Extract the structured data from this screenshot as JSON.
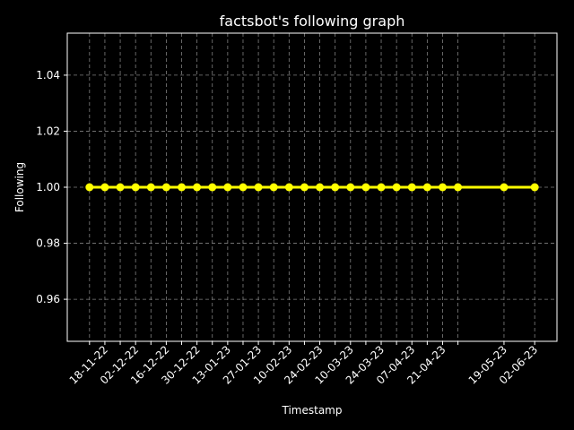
{
  "chart_data": {
    "type": "line",
    "title": "factsbot's following graph",
    "xlabel": "Timestamp",
    "ylabel": "Following",
    "x_tick_labels": [
      "18-11-22",
      "02-12-22",
      "16-12-22",
      "30-12-22",
      "13-01-23",
      "27-01-23",
      "10-02-23",
      "24-02-23",
      "10-03-23",
      "24-03-23",
      "07-04-23",
      "21-04-23",
      "19-05-23",
      "02-06-23"
    ],
    "x": [
      "11-11-22",
      "18-11-22",
      "25-11-22",
      "02-12-22",
      "09-12-22",
      "16-12-22",
      "23-12-22",
      "30-12-22",
      "06-01-23",
      "13-01-23",
      "20-01-23",
      "27-01-23",
      "03-02-23",
      "10-02-23",
      "17-02-23",
      "24-02-23",
      "03-03-23",
      "10-03-23",
      "17-03-23",
      "24-03-23",
      "31-03-23",
      "07-04-23",
      "14-04-23",
      "21-04-23",
      "28-04-23",
      "19-05-23",
      "02-06-23"
    ],
    "y": [
      1,
      1,
      1,
      1,
      1,
      1,
      1,
      1,
      1,
      1,
      1,
      1,
      1,
      1,
      1,
      1,
      1,
      1,
      1,
      1,
      1,
      1,
      1,
      1,
      1,
      1,
      1
    ],
    "ylim": [
      0.945,
      1.055
    ],
    "y_ticks": [
      "0.96",
      "0.98",
      "1.00",
      "1.02",
      "1.04"
    ],
    "y_tick_values": [
      0.96,
      0.98,
      1.0,
      1.02,
      1.04
    ],
    "grid": true,
    "colors": {
      "background": "#000000",
      "line": "#ffff00",
      "axes": "#ffffff",
      "grid": "#808080"
    }
  }
}
